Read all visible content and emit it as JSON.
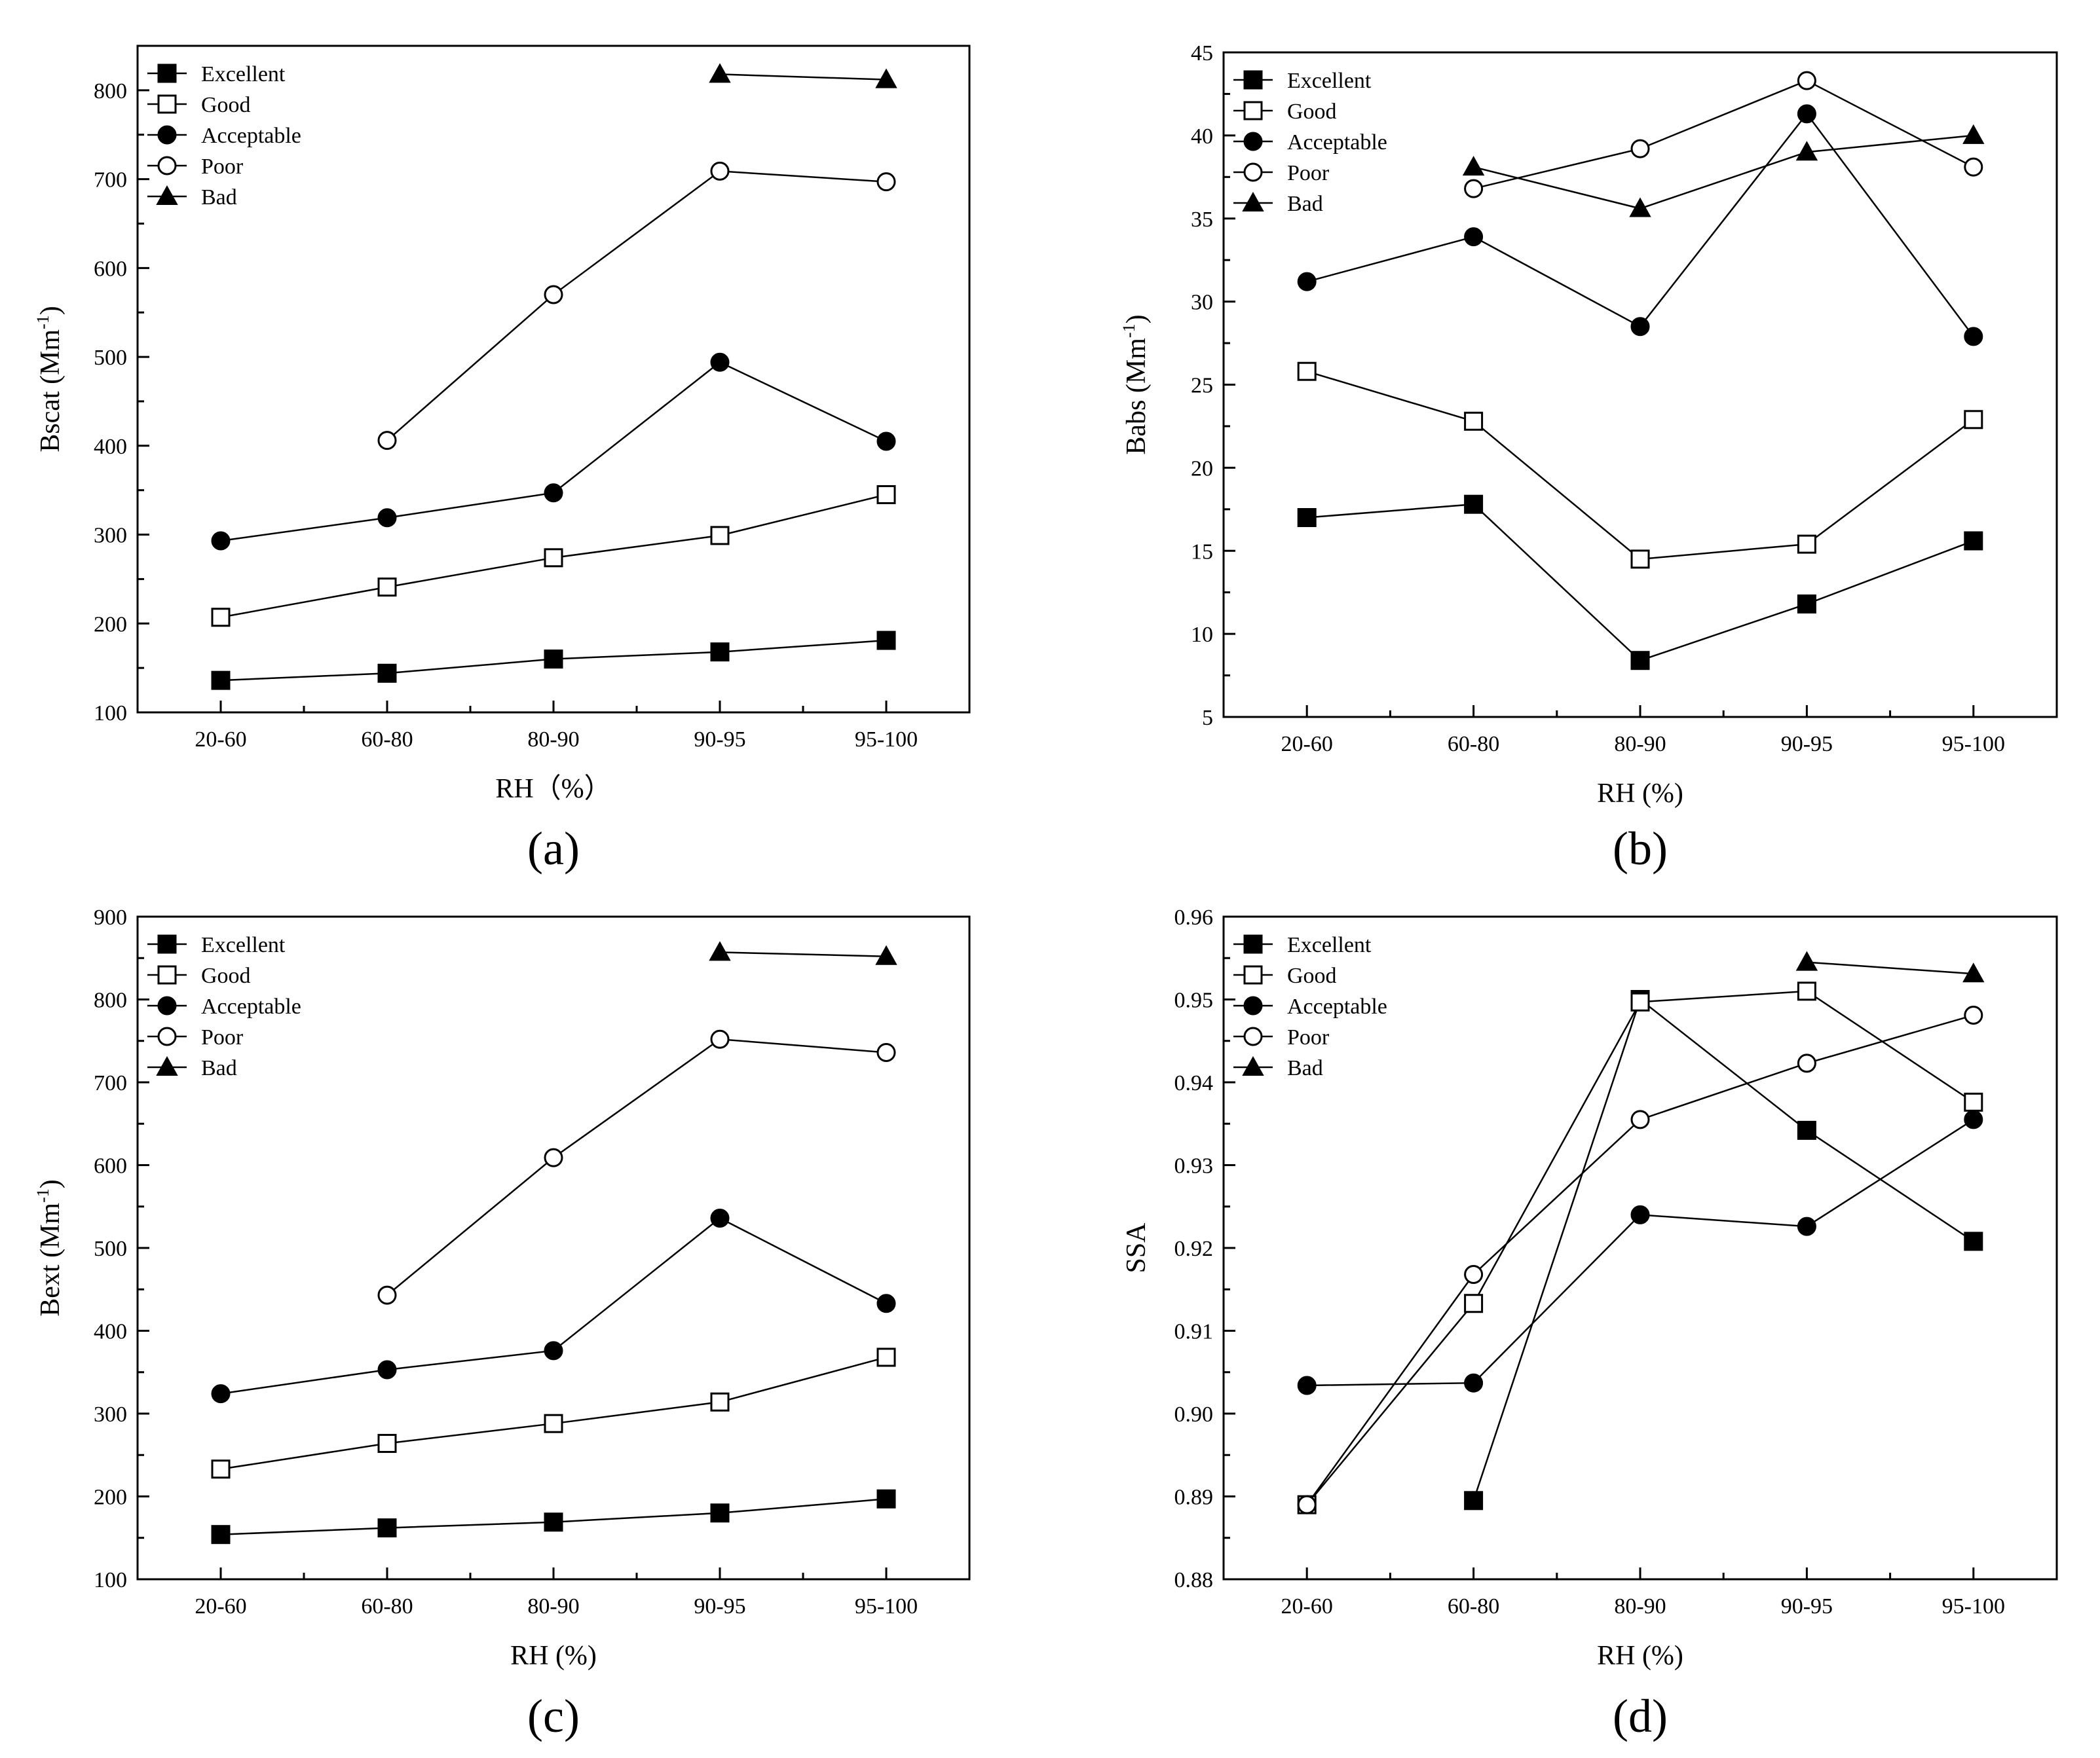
{
  "chart_data": [
    {
      "type": "line",
      "panel_label": "(a)",
      "xlabel": "RH（%）",
      "ylabel": "Bscat (Mm",
      "ylabel_sup": "-1",
      "ylabel_end": ")",
      "categories": [
        "20-60",
        "60-80",
        "80-90",
        "90-95",
        "95-100"
      ],
      "ylim": [
        100,
        850
      ],
      "yticks": [
        100,
        200,
        300,
        400,
        500,
        600,
        700,
        800
      ],
      "tick_decimals": 0,
      "legend_position": "top-left",
      "series": [
        {
          "name": "Excellent",
          "marker": "square-filled",
          "values": [
            136,
            144,
            160,
            168,
            181
          ]
        },
        {
          "name": "Good",
          "marker": "square-open",
          "values": [
            207,
            241,
            274,
            299,
            345
          ]
        },
        {
          "name": "Acceptable",
          "marker": "circle-filled",
          "values": [
            293,
            319,
            347,
            494,
            405
          ]
        },
        {
          "name": "Poor",
          "marker": "circle-open",
          "values": [
            null,
            406,
            570,
            709,
            697
          ]
        },
        {
          "name": "Bad",
          "marker": "triangle-filled",
          "values": [
            null,
            null,
            null,
            818,
            812
          ]
        }
      ]
    },
    {
      "type": "line",
      "panel_label": "(b)",
      "xlabel": "RH (%)",
      "ylabel": "Babs (Mm",
      "ylabel_sup": "-1",
      "ylabel_end": ")",
      "categories": [
        "20-60",
        "60-80",
        "80-90",
        "90-95",
        "95-100"
      ],
      "ylim": [
        5,
        45
      ],
      "yticks": [
        5,
        10,
        15,
        20,
        25,
        30,
        35,
        40,
        45
      ],
      "tick_decimals": 0,
      "legend_position": "top-left",
      "series": [
        {
          "name": "Excellent",
          "marker": "square-filled",
          "values": [
            17.0,
            17.8,
            8.4,
            11.8,
            15.6
          ]
        },
        {
          "name": "Good",
          "marker": "square-open",
          "values": [
            25.8,
            22.8,
            14.5,
            15.4,
            22.9
          ]
        },
        {
          "name": "Acceptable",
          "marker": "circle-filled",
          "values": [
            31.2,
            33.9,
            28.5,
            41.3,
            27.9
          ]
        },
        {
          "name": "Poor",
          "marker": "circle-open",
          "values": [
            null,
            36.8,
            39.2,
            43.3,
            38.1
          ]
        },
        {
          "name": "Bad",
          "marker": "triangle-filled",
          "values": [
            null,
            38.1,
            35.6,
            39.0,
            40.0
          ]
        }
      ]
    },
    {
      "type": "line",
      "panel_label": "(c)",
      "xlabel": "RH (%)",
      "ylabel": "Bext (Mm",
      "ylabel_sup": "-1",
      "ylabel_end": ")",
      "categories": [
        "20-60",
        "60-80",
        "80-90",
        "90-95",
        "95-100"
      ],
      "ylim": [
        100,
        900
      ],
      "yticks": [
        100,
        200,
        300,
        400,
        500,
        600,
        700,
        800,
        900
      ],
      "tick_decimals": 0,
      "legend_position": "top-left",
      "series": [
        {
          "name": "Excellent",
          "marker": "square-filled",
          "values": [
            154,
            162,
            169,
            180,
            197
          ]
        },
        {
          "name": "Good",
          "marker": "square-open",
          "values": [
            233,
            264,
            288,
            314,
            368
          ]
        },
        {
          "name": "Acceptable",
          "marker": "circle-filled",
          "values": [
            324,
            353,
            376,
            536,
            433
          ]
        },
        {
          "name": "Poor",
          "marker": "circle-open",
          "values": [
            null,
            443,
            609,
            752,
            736
          ]
        },
        {
          "name": "Bad",
          "marker": "triangle-filled",
          "values": [
            null,
            null,
            null,
            857,
            852
          ]
        }
      ]
    },
    {
      "type": "line",
      "panel_label": "(d)",
      "xlabel": "RH (%)",
      "ylabel": "SSA",
      "ylabel_sup": "",
      "ylabel_end": "",
      "categories": [
        "20-60",
        "60-80",
        "80-90",
        "90-95",
        "95-100"
      ],
      "ylim": [
        0.88,
        0.96
      ],
      "yticks": [
        0.88,
        0.89,
        0.9,
        0.91,
        0.92,
        0.93,
        0.94,
        0.95,
        0.96
      ],
      "tick_decimals": 2,
      "legend_position": "top-left",
      "series": [
        {
          "name": "Excellent",
          "marker": "square-filled",
          "values": [
            null,
            0.8895,
            0.95,
            0.9342,
            0.9208
          ]
        },
        {
          "name": "Good",
          "marker": "square-open",
          "values": [
            0.889,
            0.9133,
            0.9497,
            0.951,
            0.9376
          ]
        },
        {
          "name": "Acceptable",
          "marker": "circle-filled",
          "values": [
            0.9034,
            0.9037,
            0.924,
            0.9226,
            0.9355
          ]
        },
        {
          "name": "Poor",
          "marker": "circle-open",
          "values": [
            0.889,
            0.9168,
            0.9355,
            0.9423,
            0.9481
          ]
        },
        {
          "name": "Bad",
          "marker": "triangle-filled",
          "values": [
            null,
            null,
            null,
            0.9545,
            0.9531
          ]
        }
      ]
    }
  ]
}
